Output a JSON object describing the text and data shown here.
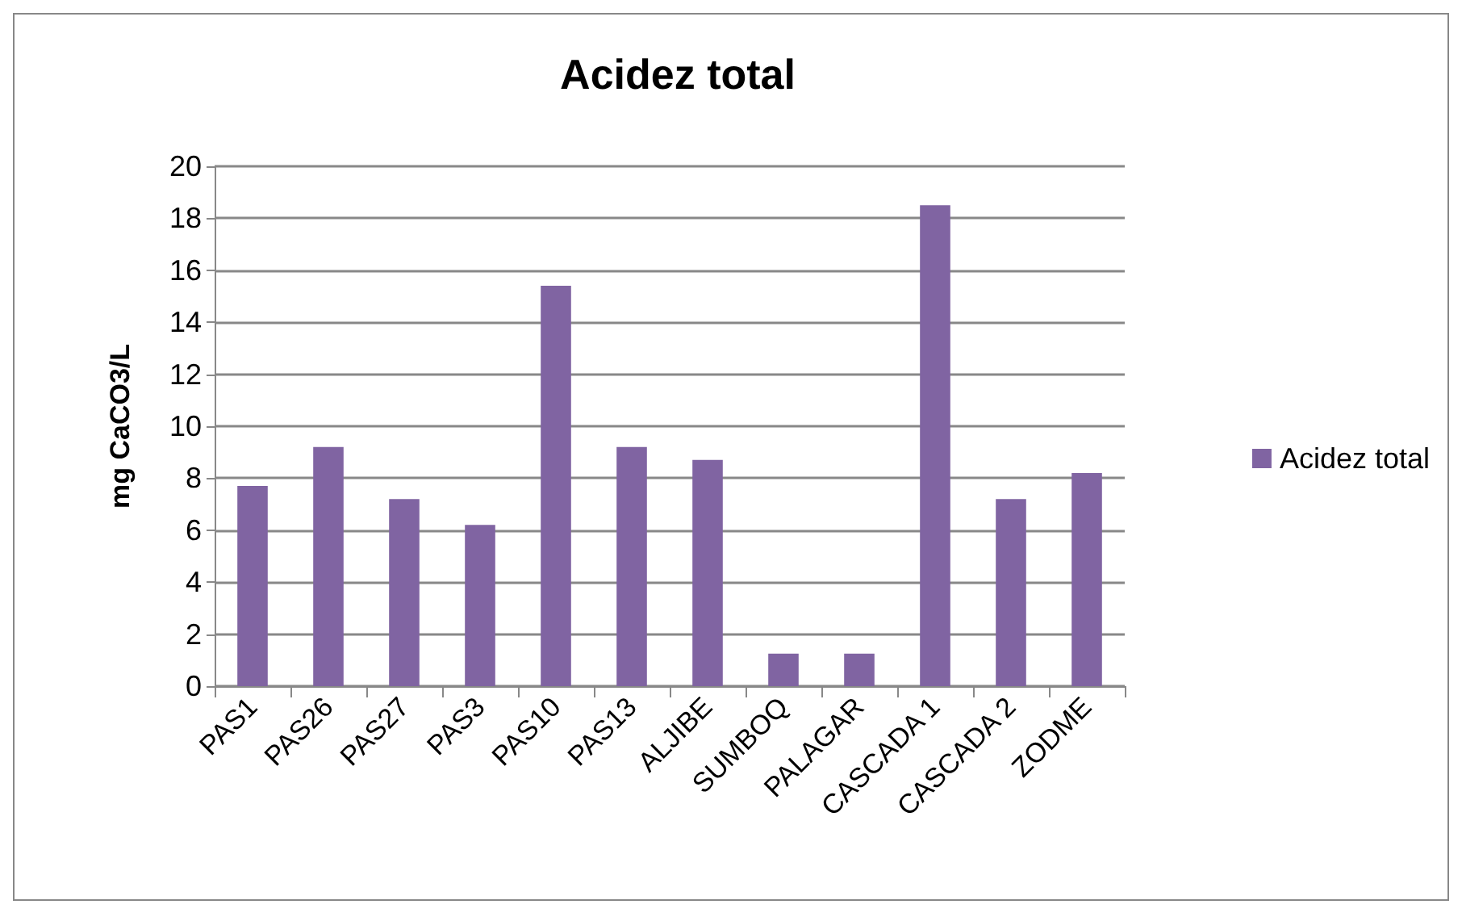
{
  "chart_data": {
    "type": "bar",
    "title": "Acidez total",
    "ylabel": "mg CaCO3/L",
    "categories": [
      "PAS1",
      "PAS26",
      "PAS27",
      "PAS3",
      "PAS10",
      "PAS13",
      "ALJIBE",
      "SUMBOQ",
      "PALAGAR",
      "CASCADA 1",
      "CASCADA 2",
      "ZODME"
    ],
    "series": [
      {
        "name": "Acidez total",
        "color": "#8064a2",
        "values": [
          7.7,
          9.2,
          7.2,
          6.2,
          15.4,
          9.2,
          8.7,
          1.25,
          1.25,
          18.5,
          7.2,
          8.2
        ]
      }
    ],
    "ylim": [
      0,
      20
    ],
    "yticks": [
      0,
      2,
      4,
      6,
      8,
      10,
      12,
      14,
      16,
      18,
      20
    ],
    "grid": "y",
    "legend": "right"
  }
}
